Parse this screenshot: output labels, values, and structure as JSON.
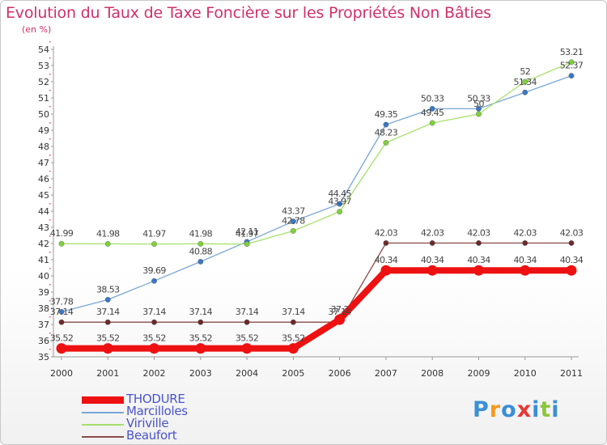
{
  "chart": {
    "title": "Evolution du Taux de Taxe Foncière sur les Propriétés Non Bâties",
    "unit_label": "(en %)"
  },
  "logo": {
    "letters": [
      "P",
      "r",
      "o",
      "x",
      "i",
      "t",
      "i"
    ],
    "colors": [
      "#3b8fd6",
      "#f39a1e",
      "#3b8fd6",
      "#e53935",
      "#3b8fd6",
      "#8cc63f",
      "#3b8fd6"
    ]
  },
  "chart_data": {
    "type": "line",
    "title": "Evolution du Taux de Taxe Foncière sur les Propriétés Non Bâties",
    "ylabel": "(en %)",
    "x": [
      "2000",
      "2001",
      "2002",
      "2003",
      "2004",
      "2005",
      "2006",
      "2007",
      "2008",
      "2009",
      "2010",
      "2011"
    ],
    "ylim": [
      35,
      54
    ],
    "yticks": [
      35,
      36,
      37,
      38,
      39,
      40,
      41,
      42,
      43,
      44,
      45,
      46,
      47,
      48,
      49,
      50,
      51,
      52,
      53,
      54
    ],
    "grid": false,
    "legend_position": "bottom-left",
    "series": [
      {
        "name": "THODURE",
        "color": "#ee1111",
        "marker": "#ee1111",
        "width": 8,
        "values": [
          35.52,
          35.52,
          35.52,
          35.52,
          35.52,
          35.52,
          37.3,
          40.34,
          40.34,
          40.34,
          40.34,
          40.34
        ],
        "labels": [
          "35.52",
          "35.52",
          "35.52",
          "35.52",
          "35.52",
          "35.52",
          "37.3",
          "40.34",
          "40.34",
          "40.34",
          "40.34",
          "40.34"
        ]
      },
      {
        "name": "Marcilloles",
        "color": "#7aa7d6",
        "marker": "#3b78c4",
        "width": 1.3,
        "values": [
          37.78,
          38.53,
          39.69,
          40.88,
          42.11,
          43.37,
          44.45,
          49.35,
          50.33,
          50.33,
          51.34,
          52.37
        ],
        "labels": [
          "37.78",
          "38.53",
          "39.69",
          "40.88",
          "42.11",
          "43.37",
          "44.45",
          "49.35",
          "50.33",
          "50.33",
          "51.34",
          "52.37"
        ]
      },
      {
        "name": "Viriville",
        "color": "#a6e06c",
        "marker": "#7fd13b",
        "width": 1.3,
        "values": [
          41.99,
          41.98,
          41.97,
          41.98,
          41.97,
          42.78,
          43.97,
          48.23,
          49.45,
          50,
          52,
          53.21
        ],
        "labels": [
          "41.99",
          "41.98",
          "41.97",
          "41.98",
          "41.97",
          "42.78",
          "43.97",
          "48.23",
          "49.45",
          "50",
          "52",
          "53.21"
        ]
      },
      {
        "name": "Beaufort",
        "color": "#8b4a4a",
        "marker": "#6b2a2a",
        "width": 1.3,
        "values": [
          37.14,
          37.14,
          37.14,
          37.14,
          37.14,
          37.14,
          37.14,
          42.03,
          42.03,
          42.03,
          42.03,
          42.03
        ],
        "labels": [
          "37.14",
          "37.14",
          "37.14",
          "37.14",
          "37.14",
          "37.14",
          "37.14",
          "42.03",
          "42.03",
          "42.03",
          "42.03",
          "42.03"
        ]
      }
    ]
  }
}
